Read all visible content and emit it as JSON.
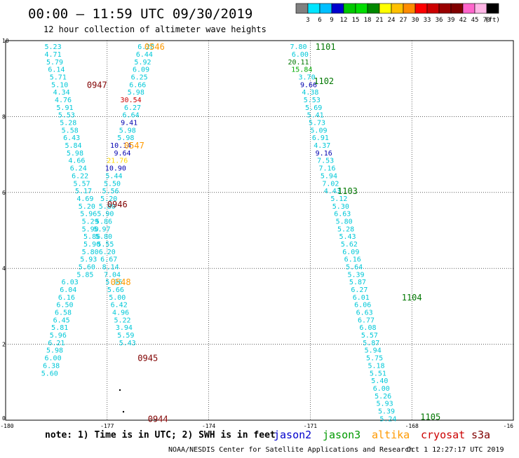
{
  "header": {
    "title": "00:00 – 11:59 UTC 09/30/2019",
    "subtitle": "12 hour collection of altimeter wave heights"
  },
  "scale": {
    "labels": [
      "3",
      "6",
      "9",
      "12",
      "15",
      "18",
      "21",
      "24",
      "27",
      "30",
      "33",
      "36",
      "39",
      "42",
      "45",
      "70",
      "(ft)"
    ],
    "colors": [
      "#808080",
      "#00e5ff",
      "#00bfff",
      "#0000cd",
      "#00c800",
      "#00dd00",
      "#008800",
      "#ffff00",
      "#ffc000",
      "#ff8c00",
      "#ff0000",
      "#cc0000",
      "#990000",
      "#800000",
      "#ff66cc",
      "#ffb6e6",
      "#000000"
    ]
  },
  "footer": {
    "note": "note: 1) Time is in UTC; 2) SWH is in feet",
    "credit": "NOAA/NESDIS Center for Satellite Applications and Research",
    "timestamp": "Oct  1 12:27:17 UTC 2019",
    "satellites": [
      {
        "name": "jason2",
        "color": "#0000cc"
      },
      {
        "name": "jason3",
        "color": "#009900"
      },
      {
        "name": "altika",
        "color": "#ff9900"
      },
      {
        "name": "cryosat",
        "color": "#cc0000"
      },
      {
        "name": "s3a",
        "color": "#800000"
      }
    ]
  },
  "chart_data": {
    "type": "scatter",
    "xlim": [
      -180,
      -165
    ],
    "ylim": [
      0,
      10
    ],
    "x_ticks": [
      "-180",
      "-177",
      "-174",
      "-171",
      "-168",
      "-16"
    ],
    "y_ticks": [
      "0",
      "2",
      "4",
      "6",
      "8",
      "10"
    ],
    "grid": true,
    "colors": {
      "c": "#00c8d8",
      "b": "#0000b0",
      "r": "#cc0000",
      "y": "#ffd700",
      "g": "#00aa00",
      "dg": "#007700",
      "or": "#ff9900",
      "br": "#800000"
    },
    "points": [
      {
        "x": -178.6,
        "y": 9.85,
        "t": "5.23",
        "c": "c"
      },
      {
        "x": -178.6,
        "y": 9.65,
        "t": "4.71",
        "c": "c"
      },
      {
        "x": -178.55,
        "y": 9.45,
        "t": "5.79",
        "c": "c"
      },
      {
        "x": -178.5,
        "y": 9.25,
        "t": "6.14",
        "c": "c"
      },
      {
        "x": -178.45,
        "y": 9.05,
        "t": "5.71",
        "c": "c"
      },
      {
        "x": -178.4,
        "y": 8.85,
        "t": "5.10",
        "c": "c"
      },
      {
        "x": -178.35,
        "y": 8.65,
        "t": "4.34",
        "c": "c"
      },
      {
        "x": -178.3,
        "y": 8.45,
        "t": "4.76",
        "c": "c"
      },
      {
        "x": -178.25,
        "y": 8.25,
        "t": "5.91",
        "c": "c"
      },
      {
        "x": -178.2,
        "y": 8.05,
        "t": "5.53",
        "c": "c"
      },
      {
        "x": -178.15,
        "y": 7.85,
        "t": "5.28",
        "c": "c"
      },
      {
        "x": -178.1,
        "y": 7.65,
        "t": "5.58",
        "c": "c"
      },
      {
        "x": -178.05,
        "y": 7.45,
        "t": "6.43",
        "c": "c"
      },
      {
        "x": -178.0,
        "y": 7.25,
        "t": "5.84",
        "c": "c"
      },
      {
        "x": -177.95,
        "y": 7.05,
        "t": "5.98",
        "c": "c"
      },
      {
        "x": -177.9,
        "y": 6.85,
        "t": "4.66",
        "c": "c"
      },
      {
        "x": -177.85,
        "y": 6.65,
        "t": "6.24",
        "c": "c"
      },
      {
        "x": -177.8,
        "y": 6.45,
        "t": "6.22",
        "c": "c"
      },
      {
        "x": -177.75,
        "y": 6.25,
        "t": "5.57",
        "c": "c"
      },
      {
        "x": -177.7,
        "y": 6.05,
        "t": "5.17",
        "c": "c"
      },
      {
        "x": -177.65,
        "y": 5.85,
        "t": "4.69",
        "c": "c"
      },
      {
        "x": -177.6,
        "y": 5.65,
        "t": "5.20",
        "c": "c"
      },
      {
        "x": -177.55,
        "y": 5.45,
        "t": "5.96",
        "c": "c"
      },
      {
        "x": -177.5,
        "y": 5.25,
        "t": "5.29",
        "c": "c"
      },
      {
        "x": -177.5,
        "y": 5.05,
        "t": "5.90",
        "c": "c"
      },
      {
        "x": -177.45,
        "y": 4.85,
        "t": "5.86",
        "c": "c"
      },
      {
        "x": -177.45,
        "y": 4.65,
        "t": "5.90",
        "c": "c"
      },
      {
        "x": -177.5,
        "y": 4.45,
        "t": "5.80",
        "c": "c"
      },
      {
        "x": -177.55,
        "y": 4.25,
        "t": "5.93",
        "c": "c"
      },
      {
        "x": -177.6,
        "y": 4.05,
        "t": "5.60",
        "c": "c"
      },
      {
        "x": -177.65,
        "y": 3.85,
        "t": "5.85",
        "c": "c"
      },
      {
        "x": -178.1,
        "y": 3.65,
        "t": "6.03",
        "c": "c"
      },
      {
        "x": -178.15,
        "y": 3.45,
        "t": "6.04",
        "c": "c"
      },
      {
        "x": -178.2,
        "y": 3.25,
        "t": "6.16",
        "c": "c"
      },
      {
        "x": -178.25,
        "y": 3.05,
        "t": "6.50",
        "c": "c"
      },
      {
        "x": -178.3,
        "y": 2.85,
        "t": "6.58",
        "c": "c"
      },
      {
        "x": -178.35,
        "y": 2.65,
        "t": "6.45",
        "c": "c"
      },
      {
        "x": -178.4,
        "y": 2.45,
        "t": "5.81",
        "c": "c"
      },
      {
        "x": -178.45,
        "y": 2.25,
        "t": "5.96",
        "c": "c"
      },
      {
        "x": -178.5,
        "y": 2.05,
        "t": "6.21",
        "c": "c"
      },
      {
        "x": -178.55,
        "y": 1.85,
        "t": "5.98",
        "c": "c"
      },
      {
        "x": -178.6,
        "y": 1.65,
        "t": "6.00",
        "c": "c"
      },
      {
        "x": -178.65,
        "y": 1.45,
        "t": "6.38",
        "c": "c"
      },
      {
        "x": -178.7,
        "y": 1.25,
        "t": "5.60",
        "c": "c"
      },
      {
        "x": -175.85,
        "y": 9.85,
        "t": "6.28",
        "c": "c"
      },
      {
        "x": -175.9,
        "y": 9.65,
        "t": "6.44",
        "c": "c"
      },
      {
        "x": -175.95,
        "y": 9.45,
        "t": "5.92",
        "c": "c"
      },
      {
        "x": -176.0,
        "y": 9.25,
        "t": "6.09",
        "c": "c"
      },
      {
        "x": -176.05,
        "y": 9.05,
        "t": "6.25",
        "c": "c"
      },
      {
        "x": -176.1,
        "y": 8.85,
        "t": "6.66",
        "c": "c"
      },
      {
        "x": -176.15,
        "y": 8.65,
        "t": "5.98",
        "c": "c"
      },
      {
        "x": -176.3,
        "y": 8.45,
        "t": "30.54",
        "c": "r"
      },
      {
        "x": -176.25,
        "y": 8.25,
        "t": "6.27",
        "c": "c"
      },
      {
        "x": -176.3,
        "y": 8.05,
        "t": "6.64",
        "c": "c"
      },
      {
        "x": -176.35,
        "y": 7.85,
        "t": "9.41",
        "c": "b"
      },
      {
        "x": -176.4,
        "y": 7.65,
        "t": "5.98",
        "c": "c"
      },
      {
        "x": -176.45,
        "y": 7.45,
        "t": "5.98",
        "c": "c"
      },
      {
        "x": -176.6,
        "y": 7.25,
        "t": "10.14",
        "c": "b"
      },
      {
        "x": -176.55,
        "y": 7.05,
        "t": "9.64",
        "c": "b"
      },
      {
        "x": -176.7,
        "y": 6.85,
        "t": "21.76",
        "c": "y"
      },
      {
        "x": -176.75,
        "y": 6.65,
        "t": "10.90",
        "c": "b"
      },
      {
        "x": -176.8,
        "y": 6.45,
        "t": "5.44",
        "c": "c"
      },
      {
        "x": -176.85,
        "y": 6.25,
        "t": "5.50",
        "c": "c"
      },
      {
        "x": -176.9,
        "y": 6.05,
        "t": "5.56",
        "c": "c"
      },
      {
        "x": -176.95,
        "y": 5.85,
        "t": "5.20",
        "c": "c"
      },
      {
        "x": -177.0,
        "y": 5.65,
        "t": "5.80",
        "c": "c"
      },
      {
        "x": -177.05,
        "y": 5.45,
        "t": "5.90",
        "c": "c"
      },
      {
        "x": -177.1,
        "y": 5.25,
        "t": "5.86",
        "c": "c"
      },
      {
        "x": -177.15,
        "y": 5.05,
        "t": "5.97",
        "c": "c"
      },
      {
        "x": -177.1,
        "y": 4.85,
        "t": "5.80",
        "c": "c"
      },
      {
        "x": -177.05,
        "y": 4.65,
        "t": "5.55",
        "c": "c"
      },
      {
        "x": -177.0,
        "y": 4.45,
        "t": "6.20",
        "c": "c"
      },
      {
        "x": -176.95,
        "y": 4.25,
        "t": "6.67",
        "c": "c"
      },
      {
        "x": -176.9,
        "y": 4.05,
        "t": "8.14",
        "c": "c"
      },
      {
        "x": -176.85,
        "y": 3.85,
        "t": "7.04",
        "c": "c"
      },
      {
        "x": -176.8,
        "y": 3.65,
        "t": "5.96",
        "c": "c"
      },
      {
        "x": -176.75,
        "y": 3.45,
        "t": "5.66",
        "c": "c"
      },
      {
        "x": -176.7,
        "y": 3.25,
        "t": "5.00",
        "c": "c"
      },
      {
        "x": -176.65,
        "y": 3.05,
        "t": "6.42",
        "c": "c"
      },
      {
        "x": -176.6,
        "y": 2.85,
        "t": "4.96",
        "c": "c"
      },
      {
        "x": -176.55,
        "y": 2.65,
        "t": "5.22",
        "c": "c"
      },
      {
        "x": -176.5,
        "y": 2.45,
        "t": "3.94",
        "c": "c"
      },
      {
        "x": -176.45,
        "y": 2.25,
        "t": "5.59",
        "c": "c"
      },
      {
        "x": -176.4,
        "y": 2.05,
        "t": "5.43",
        "c": "c"
      },
      {
        "x": -171.35,
        "y": 9.85,
        "t": "7.80",
        "c": "c"
      },
      {
        "x": -171.3,
        "y": 9.65,
        "t": "6.00",
        "c": "c"
      },
      {
        "x": -171.35,
        "y": 9.45,
        "t": "20.11",
        "c": "dg"
      },
      {
        "x": -171.25,
        "y": 9.25,
        "t": "15.84",
        "c": "g"
      },
      {
        "x": -171.1,
        "y": 9.05,
        "t": "3.70",
        "c": "c"
      },
      {
        "x": -171.05,
        "y": 8.85,
        "t": "9.66",
        "c": "b"
      },
      {
        "x": -171.0,
        "y": 8.65,
        "t": "4.38",
        "c": "c"
      },
      {
        "x": -170.95,
        "y": 8.45,
        "t": "5.53",
        "c": "c"
      },
      {
        "x": -170.9,
        "y": 8.25,
        "t": "5.69",
        "c": "c"
      },
      {
        "x": -170.85,
        "y": 8.05,
        "t": "5.41",
        "c": "c"
      },
      {
        "x": -170.8,
        "y": 7.85,
        "t": "5.73",
        "c": "c"
      },
      {
        "x": -170.75,
        "y": 7.65,
        "t": "5.09",
        "c": "c"
      },
      {
        "x": -170.7,
        "y": 7.45,
        "t": "6.91",
        "c": "c"
      },
      {
        "x": -170.65,
        "y": 7.25,
        "t": "4.37",
        "c": "c"
      },
      {
        "x": -170.6,
        "y": 7.05,
        "t": "9.16",
        "c": "b"
      },
      {
        "x": -170.55,
        "y": 6.85,
        "t": "7.53",
        "c": "c"
      },
      {
        "x": -170.5,
        "y": 6.65,
        "t": "7.16",
        "c": "c"
      },
      {
        "x": -170.45,
        "y": 6.45,
        "t": "5.94",
        "c": "c"
      },
      {
        "x": -170.4,
        "y": 6.25,
        "t": "7.02",
        "c": "c"
      },
      {
        "x": -170.35,
        "y": 6.05,
        "t": "4.43",
        "c": "c"
      },
      {
        "x": -170.15,
        "y": 5.85,
        "t": "5.12",
        "c": "c"
      },
      {
        "x": -170.1,
        "y": 5.65,
        "t": "5.30",
        "c": "c"
      },
      {
        "x": -170.05,
        "y": 5.45,
        "t": "6.63",
        "c": "c"
      },
      {
        "x": -170.0,
        "y": 5.25,
        "t": "5.80",
        "c": "c"
      },
      {
        "x": -169.95,
        "y": 5.05,
        "t": "5.28",
        "c": "c"
      },
      {
        "x": -169.9,
        "y": 4.85,
        "t": "5.43",
        "c": "c"
      },
      {
        "x": -169.85,
        "y": 4.65,
        "t": "5.62",
        "c": "c"
      },
      {
        "x": -169.8,
        "y": 4.45,
        "t": "6.09",
        "c": "c"
      },
      {
        "x": -169.75,
        "y": 4.25,
        "t": "6.16",
        "c": "c"
      },
      {
        "x": -169.7,
        "y": 4.05,
        "t": "5.64",
        "c": "c"
      },
      {
        "x": -169.65,
        "y": 3.85,
        "t": "5.39",
        "c": "c"
      },
      {
        "x": -169.6,
        "y": 3.65,
        "t": "5.87",
        "c": "c"
      },
      {
        "x": -169.55,
        "y": 3.45,
        "t": "6.27",
        "c": "c"
      },
      {
        "x": -169.5,
        "y": 3.25,
        "t": "6.01",
        "c": "c"
      },
      {
        "x": -169.45,
        "y": 3.05,
        "t": "6.06",
        "c": "c"
      },
      {
        "x": -169.4,
        "y": 2.85,
        "t": "6.63",
        "c": "c"
      },
      {
        "x": -169.35,
        "y": 2.65,
        "t": "6.77",
        "c": "c"
      },
      {
        "x": -169.3,
        "y": 2.45,
        "t": "6.08",
        "c": "c"
      },
      {
        "x": -169.25,
        "y": 2.25,
        "t": "5.57",
        "c": "c"
      },
      {
        "x": -169.2,
        "y": 2.05,
        "t": "5.87",
        "c": "c"
      },
      {
        "x": -169.15,
        "y": 1.85,
        "t": "5.94",
        "c": "c"
      },
      {
        "x": -169.1,
        "y": 1.65,
        "t": "5.75",
        "c": "c"
      },
      {
        "x": -169.05,
        "y": 1.45,
        "t": "5.18",
        "c": "c"
      },
      {
        "x": -169.0,
        "y": 1.25,
        "t": "5.51",
        "c": "c"
      },
      {
        "x": -168.95,
        "y": 1.05,
        "t": "5.40",
        "c": "c"
      },
      {
        "x": -168.9,
        "y": 0.85,
        "t": "6.00",
        "c": "c"
      },
      {
        "x": -168.85,
        "y": 0.65,
        "t": "5.26",
        "c": "c"
      },
      {
        "x": -168.8,
        "y": 0.45,
        "t": "5.93",
        "c": "c"
      },
      {
        "x": -168.75,
        "y": 0.25,
        "t": "5.39",
        "c": "c"
      },
      {
        "x": -168.7,
        "y": 0.05,
        "t": "5.24",
        "c": "c"
      }
    ],
    "time_labels": [
      {
        "x": -175.6,
        "y": 9.85,
        "t": "0546",
        "c": "or"
      },
      {
        "x": -177.3,
        "y": 8.85,
        "t": "0947",
        "c": "br"
      },
      {
        "x": -176.2,
        "y": 7.25,
        "t": "0547",
        "c": "or"
      },
      {
        "x": -176.7,
        "y": 5.7,
        "t": "0946",
        "c": "br"
      },
      {
        "x": -176.6,
        "y": 3.65,
        "t": "0548",
        "c": "or"
      },
      {
        "x": -175.8,
        "y": 1.65,
        "t": "0945",
        "c": "br"
      },
      {
        "x": -175.5,
        "y": 0.05,
        "t": "0944",
        "c": "br"
      },
      {
        "x": -170.55,
        "y": 9.85,
        "t": "1101",
        "c": "dg"
      },
      {
        "x": -170.6,
        "y": 8.95,
        "t": "1102",
        "c": "dg"
      },
      {
        "x": -169.9,
        "y": 6.05,
        "t": "1103",
        "c": "dg"
      },
      {
        "x": -168.0,
        "y": 3.25,
        "t": "1104",
        "c": "dg"
      },
      {
        "x": -167.45,
        "y": 0.1,
        "t": "1105",
        "c": "dg"
      }
    ]
  }
}
